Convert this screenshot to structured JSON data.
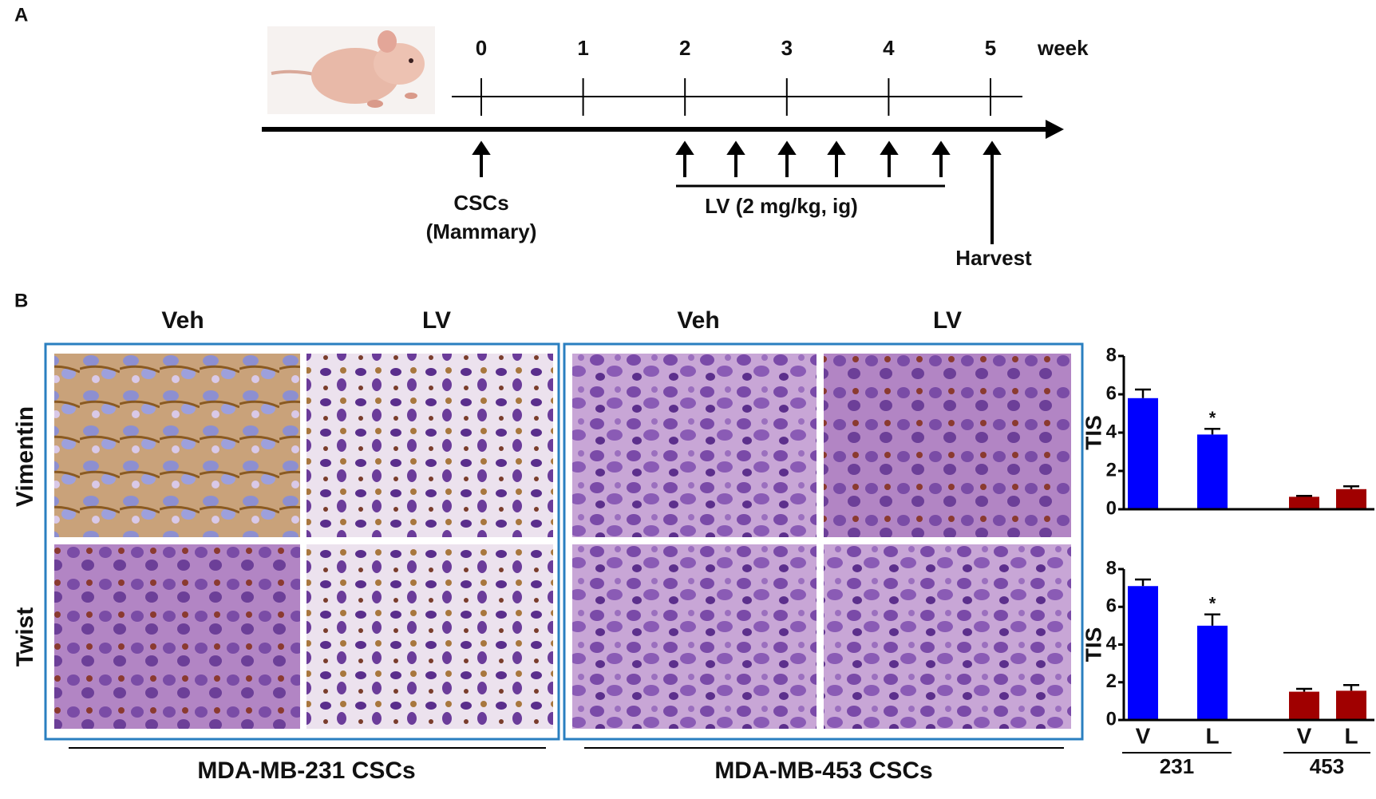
{
  "panel_a": {
    "label": "A",
    "weeks": [
      0,
      1,
      2,
      3,
      4,
      5
    ],
    "week_unit": "week",
    "csc_label": "CSCs",
    "csc_sublabel": "(Mammary)",
    "lv_label": "LV (2 mg/kg, ig)",
    "harvest_label": "Harvest"
  },
  "panel_b": {
    "label": "B",
    "column_labels": [
      "Veh",
      "LV",
      "Veh",
      "LV"
    ],
    "row_labels": [
      "Vimentin",
      "Twist"
    ],
    "group_labels": [
      "MDA-MB-231 CSCs",
      "MDA-MB-453 CSCs"
    ]
  },
  "chart_data": [
    {
      "type": "bar",
      "ylabel": "TIS",
      "ylim": [
        0,
        8
      ],
      "yticks": [
        0,
        2,
        4,
        6,
        8
      ],
      "values": [
        5.8,
        3.9,
        0.65,
        1.05
      ],
      "errors": [
        0.45,
        0.3,
        0.05,
        0.15
      ],
      "colors": [
        "#0000ff",
        "#0000ff",
        "#a00000",
        "#a00000"
      ],
      "significance": [
        null,
        "*",
        null,
        null
      ]
    },
    {
      "type": "bar",
      "ylabel": "TIS",
      "ylim": [
        0,
        8
      ],
      "yticks": [
        0,
        2,
        4,
        6,
        8
      ],
      "values": [
        7.1,
        5.0,
        1.5,
        1.55
      ],
      "errors": [
        0.35,
        0.6,
        0.15,
        0.3
      ],
      "colors": [
        "#0000ff",
        "#0000ff",
        "#a00000",
        "#a00000"
      ],
      "significance": [
        null,
        "*",
        null,
        null
      ],
      "categories": [
        "V",
        "L",
        "V",
        "L"
      ],
      "groups": [
        "231",
        "453"
      ]
    }
  ]
}
